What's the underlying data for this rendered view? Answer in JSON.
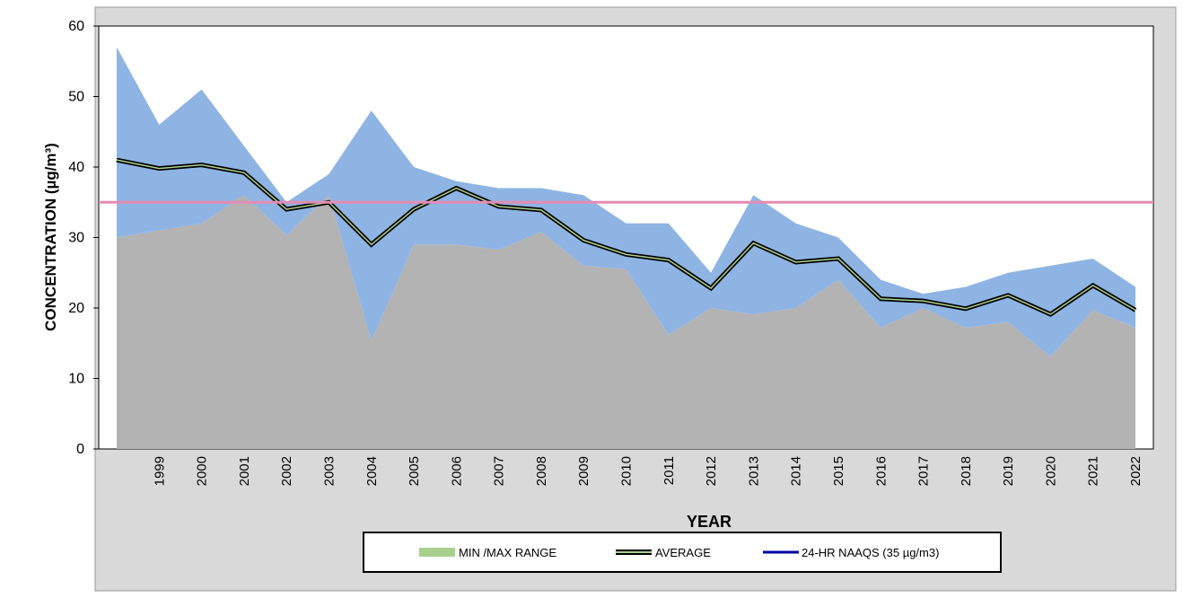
{
  "chart_data": {
    "type": "range_line",
    "xlabel": "YEAR",
    "ylabel": "CONCENTRATION (µg/m³)",
    "categories": [
      null,
      "1999",
      "2000",
      "2001",
      "2002",
      "2003",
      "2004",
      "2005",
      "2006",
      "2007",
      "2008",
      "2009",
      "2010",
      "2011",
      "2012",
      "2013",
      "2014",
      "2015",
      "2016",
      "2017",
      "2018",
      "2019",
      "2020",
      "2021",
      "2022"
    ],
    "series": [
      {
        "name": "MIN /MAX RANGE",
        "color": "#8eb4e3",
        "legend_color": "#a9d18e",
        "max": [
          57,
          46,
          51,
          43,
          35,
          39,
          48,
          40,
          38,
          37,
          37,
          36,
          32,
          32,
          25,
          36,
          32,
          30,
          24,
          22,
          23,
          25,
          26,
          27,
          23
        ],
        "min": [
          30,
          31,
          32,
          36,
          30.3,
          36,
          15.3,
          29,
          29,
          28.3,
          30.8,
          26,
          25.5,
          16.2,
          20,
          19.1,
          20,
          24,
          17.2,
          20,
          17.2,
          18,
          13.1,
          19.7,
          17.2
        ]
      },
      {
        "name": "AVERAGE",
        "color": "#000000",
        "inner_color": "#a9d18e",
        "values": [
          41,
          39.8,
          40.3,
          39.2,
          34,
          35,
          29,
          34,
          37,
          34.4,
          33.9,
          29.6,
          27.6,
          26.8,
          22.8,
          29.2,
          26.5,
          27,
          21.3,
          21,
          19.9,
          21.8,
          19.1,
          23.2,
          19.7
        ]
      }
    ],
    "naaqs": {
      "name": "24-HR NAAQS (35 µg/m3)",
      "value": 35,
      "color": "#e38cb3",
      "legend_color": "#0000a0"
    },
    "ylim": [
      0,
      60
    ],
    "yticks": [
      0,
      10,
      20,
      30,
      40,
      50,
      60
    ]
  }
}
